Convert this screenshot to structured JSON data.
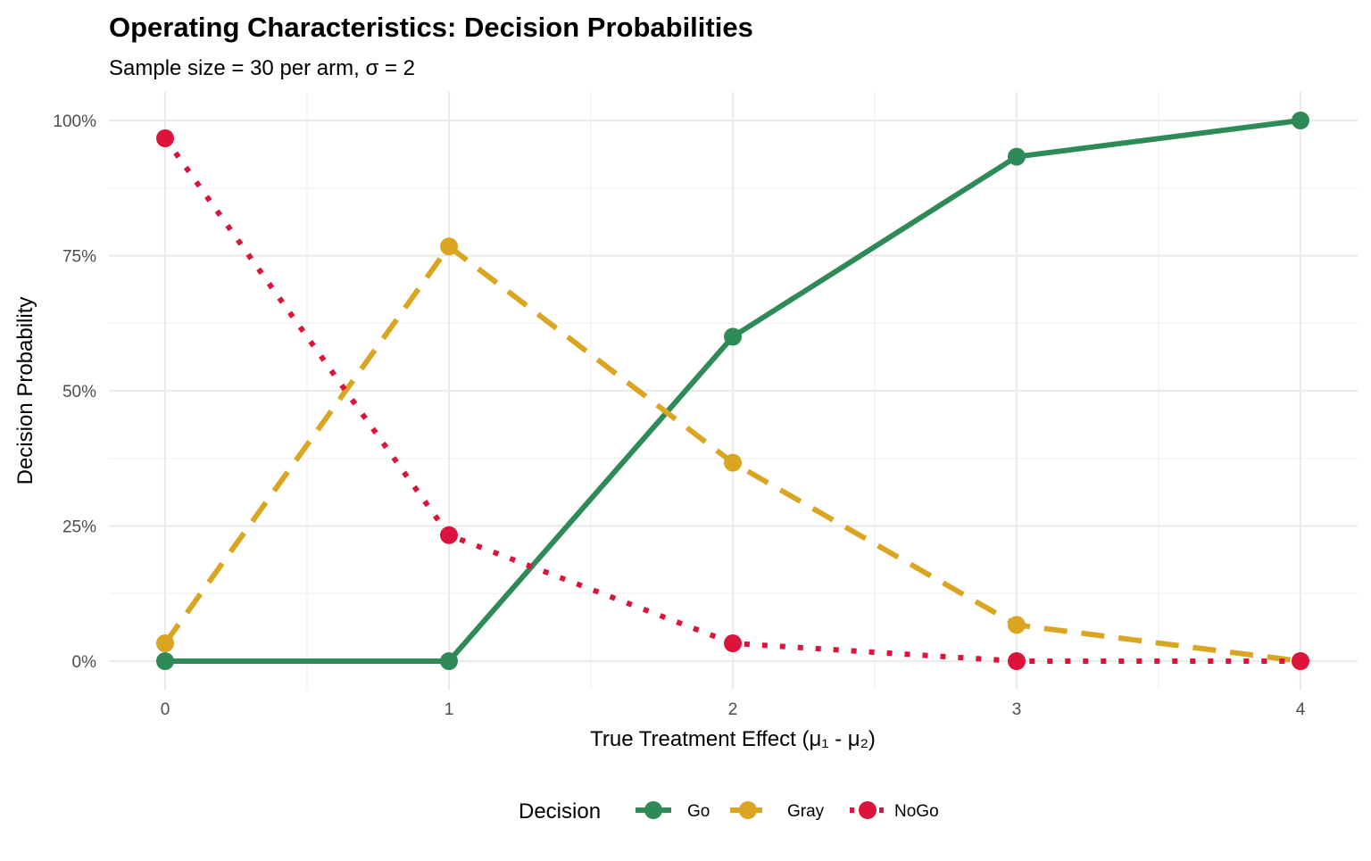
{
  "chart_data": {
    "type": "line",
    "title": "Operating Characteristics: Decision Probabilities",
    "subtitle": "Sample size = 30 per arm, σ = 2",
    "xlabel": "True Treatment Effect (μ₁ - μ₂)",
    "ylabel": "Decision Probability",
    "x": [
      0,
      1,
      2,
      3,
      4
    ],
    "xlim": [
      -0.17,
      4.2
    ],
    "ylim": [
      -5,
      105
    ],
    "x_ticks": [
      "0",
      "1",
      "2",
      "3",
      "4"
    ],
    "y_ticks": [
      "0%",
      "25%",
      "50%",
      "75%",
      "100%"
    ],
    "y_tick_values": [
      0,
      25,
      50,
      75,
      100
    ],
    "grid": true,
    "legend": {
      "title": "Decision",
      "position": "bottom"
    },
    "series": [
      {
        "name": "Go",
        "color": "#2E8B57",
        "dash": "solid",
        "values": [
          0,
          0,
          60,
          93.3,
          100
        ]
      },
      {
        "name": "Gray",
        "color": "#DAA520",
        "dash": "dashed",
        "values": [
          3.3,
          76.7,
          36.7,
          6.7,
          0
        ]
      },
      {
        "name": "NoGo",
        "color": "#DC143C",
        "dash": "dotted",
        "values": [
          96.7,
          23.3,
          3.3,
          0,
          0
        ]
      }
    ]
  }
}
